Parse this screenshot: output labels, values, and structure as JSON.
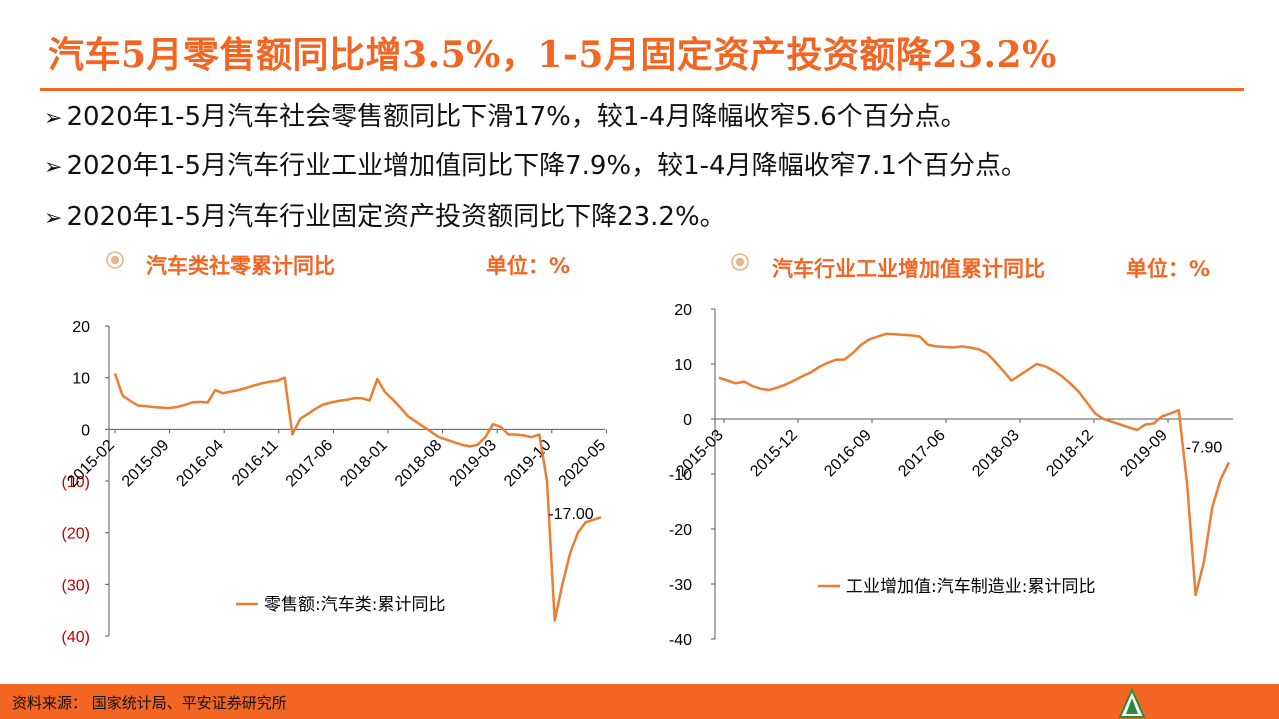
{
  "header": {
    "title": "汽车5月零售额同比增3.5%，1-5月固定资产投资额降23.2%"
  },
  "bullets": [
    {
      "arrow": "➢",
      "text": "2020年1-5月汽车社会零售额同比下滑17%，较1-4月降幅收窄5.6个百分点。"
    },
    {
      "arrow": "➢",
      "text": "2020年1-5月汽车行业工业增加值同比下降7.9%，较1-4月降幅收窄7.1个百分点。"
    },
    {
      "arrow": "➢",
      "text": "2020年1-5月汽车行业固定资产投资额同比下降23.2%。"
    }
  ],
  "charts_meta": [
    {
      "title": "汽车类社零累计同比",
      "unit": "单位：%"
    },
    {
      "title": "汽车行业工业增加值累计同比",
      "unit": "单位：%"
    }
  ],
  "footer": {
    "source": "资料来源：  国家统计局、平安证券研究所"
  },
  "colors": {
    "accent": "#f26522",
    "negative_tick": "#c00000",
    "line": "#ed7d31"
  },
  "chart_data": [
    {
      "type": "line",
      "ylim": [
        -40,
        20
      ],
      "yticks": [
        20,
        10,
        0,
        -10,
        -20,
        -30,
        -40
      ],
      "ytick_labels": [
        "20",
        "10",
        "0",
        "(10)",
        "(20)",
        "(30)",
        "(40)"
      ],
      "xtick_labels": [
        "2015-02",
        "2015-09",
        "2016-04",
        "2016-11",
        "2017-06",
        "2018-01",
        "2018-08",
        "2019-03",
        "2019-10",
        "2020-05"
      ],
      "xlabel": "",
      "ylabel": "",
      "legend_position": "bottom-center",
      "annotation": {
        "text": "-17.00",
        "index": 63,
        "value": -17.0
      },
      "series": [
        {
          "name": "零售额:汽车类:累计同比",
          "values": [
            10.8,
            6.5,
            5.5,
            4.6,
            4.5,
            4.3,
            4.2,
            4.1,
            4.3,
            4.7,
            5.2,
            5.3,
            5.2,
            7.6,
            7.0,
            7.3,
            7.6,
            8.0,
            8.5,
            8.9,
            9.2,
            9.4,
            10.0,
            -1.0,
            2.0,
            3.0,
            4.0,
            4.8,
            5.2,
            5.5,
            5.7,
            6.0,
            6.0,
            5.6,
            9.7,
            7.2,
            5.8,
            4.2,
            2.5,
            1.5,
            0.5,
            -0.5,
            -1.5,
            -2.0,
            -2.5,
            -3.0,
            -3.3,
            -3.0,
            -1.5,
            1.0,
            0.5,
            -1.0,
            -1.0,
            -1.2,
            -1.5,
            -1.0,
            -10.0,
            -37.0,
            -30.0,
            -24.0,
            -20.0,
            -18.0,
            -17.5,
            -17.0
          ]
        }
      ]
    },
    {
      "type": "line",
      "ylim": [
        -40,
        20
      ],
      "yticks": [
        20,
        10,
        0,
        -10,
        -20,
        -30,
        -40
      ],
      "ytick_labels": [
        "20",
        "10",
        "0",
        "-10",
        "-20",
        "-30",
        "-40"
      ],
      "xtick_labels": [
        "2015-03",
        "2015-12",
        "2016-09",
        "2017-06",
        "2018-03",
        "2018-12",
        "2019-09"
      ],
      "xlabel": "",
      "ylabel": "",
      "legend_position": "bottom-center",
      "annotation": {
        "text": "-7.90",
        "index": 61,
        "value": -7.9
      },
      "series": [
        {
          "name": "工业增加值:汽车制造业:累计同比",
          "values": [
            7.5,
            7.0,
            6.5,
            6.8,
            6.0,
            5.5,
            5.3,
            5.7,
            6.3,
            7.0,
            7.8,
            8.5,
            9.5,
            10.2,
            10.8,
            10.8,
            12.0,
            13.5,
            14.5,
            15.0,
            15.5,
            15.4,
            15.3,
            15.2,
            15.0,
            13.5,
            13.2,
            13.1,
            13.0,
            13.2,
            13.0,
            12.7,
            12.0,
            10.5,
            8.7,
            7.0,
            8.0,
            9.0,
            10.0,
            9.6,
            8.8,
            7.8,
            6.5,
            5.0,
            3.0,
            1.0,
            0.0,
            -0.5,
            -1.0,
            -1.5,
            -2.0,
            -1.0,
            -0.8,
            0.5,
            1.0,
            1.6,
            -12.0,
            -32.0,
            -26.0,
            -16.0,
            -11.0,
            -7.9
          ]
        }
      ]
    }
  ]
}
